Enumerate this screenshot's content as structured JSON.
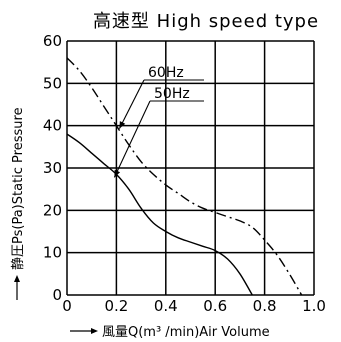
{
  "chart_data": {
    "type": "line",
    "title": "高速型 High speed type",
    "xlabel": "風量Q(m³ /min)Air Volume",
    "ylabel": "静圧Ps(Pa)Static Pressure",
    "xlim": [
      0,
      1.0
    ],
    "ylim": [
      0,
      60
    ],
    "x_ticks": [
      "0",
      "0.2",
      "0.4",
      "0.6",
      "0.8",
      "1.0"
    ],
    "y_ticks": [
      "0",
      "10",
      "20",
      "30",
      "40",
      "50",
      "60"
    ],
    "grid": true,
    "series": [
      {
        "name": "60Hz",
        "style": "dashdot",
        "points": [
          [
            0,
            56
          ],
          [
            0.05,
            53
          ],
          [
            0.1,
            49
          ],
          [
            0.15,
            44.5
          ],
          [
            0.2,
            40
          ],
          [
            0.25,
            35.5
          ],
          [
            0.3,
            31.5
          ],
          [
            0.35,
            28.5
          ],
          [
            0.4,
            26
          ],
          [
            0.45,
            24
          ],
          [
            0.5,
            22
          ],
          [
            0.55,
            20.5
          ],
          [
            0.6,
            19.5
          ],
          [
            0.65,
            18.5
          ],
          [
            0.7,
            17.5
          ],
          [
            0.75,
            16
          ],
          [
            0.8,
            13
          ],
          [
            0.85,
            9.5
          ],
          [
            0.9,
            5
          ],
          [
            0.95,
            0
          ]
        ]
      },
      {
        "name": "50Hz",
        "style": "solid",
        "points": [
          [
            0,
            38
          ],
          [
            0.05,
            36
          ],
          [
            0.1,
            33.5
          ],
          [
            0.15,
            31
          ],
          [
            0.2,
            28.5
          ],
          [
            0.25,
            25
          ],
          [
            0.3,
            20.5
          ],
          [
            0.35,
            17
          ],
          [
            0.4,
            15
          ],
          [
            0.45,
            13.5
          ],
          [
            0.5,
            12.5
          ],
          [
            0.55,
            11.5
          ],
          [
            0.6,
            10.5
          ],
          [
            0.65,
            8.5
          ],
          [
            0.7,
            5
          ],
          [
            0.75,
            0
          ]
        ]
      }
    ]
  }
}
